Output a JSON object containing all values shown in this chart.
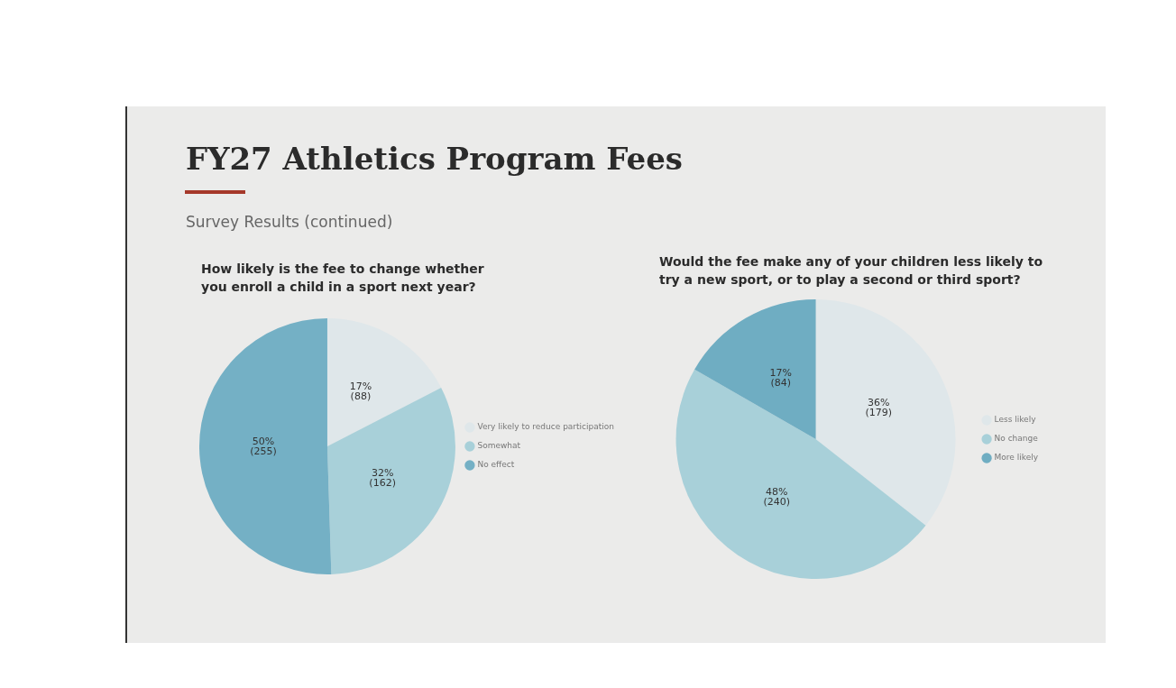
{
  "chart_data": [
    {
      "type": "other",
      "title": "FY27 Athletics Program Fees",
      "subtitle": "Survey Results (continued)"
    },
    {
      "type": "pie",
      "title": "How likely is the fee to change whether you enroll a child in a sport next year?",
      "categories": [
        "Very likely to reduce participation",
        "Somewhat",
        "No effect"
      ],
      "values": [
        88,
        162,
        255
      ],
      "value_labels": [
        "17% (88)",
        "32% (162)",
        "50% (255)"
      ],
      "colors": [
        "#dfe7ea",
        "#a8d0d9",
        "#74b0c5"
      ],
      "legend": "right"
    },
    {
      "type": "pie",
      "title": "Would the fee make any of your children less likely to try a new sport, or to play a second or third sport?",
      "categories": [
        "Less likely",
        "No change",
        "More likely"
      ],
      "values": [
        179,
        240,
        84
      ],
      "value_labels": [
        "36% (179)",
        "48% (240)",
        "17% (84)"
      ],
      "colors": [
        "#dfe7ea",
        "#a8d0d9",
        "#6fadc2"
      ],
      "legend": "right"
    }
  ]
}
